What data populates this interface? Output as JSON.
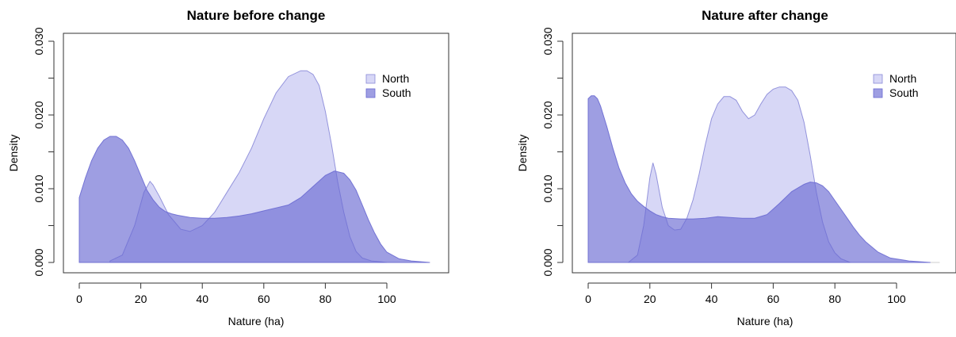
{
  "chart_data": [
    {
      "type": "area",
      "title": "Nature before change",
      "xlabel": "Nature (ha)",
      "ylabel": "Density",
      "xlim": [
        0,
        120
      ],
      "ylim": [
        0,
        0.03
      ],
      "x_ticks": [
        0,
        20,
        40,
        60,
        80,
        100
      ],
      "y_ticks": [
        "0.000",
        "0.010",
        "0.020",
        "0.030"
      ],
      "legend_position": "top-right",
      "series": [
        {
          "name": "North",
          "color": "#d0d0f4",
          "stroke": "#8a8ad8",
          "x": [
            10,
            14,
            18,
            21,
            23,
            24,
            26,
            29,
            33,
            36,
            40,
            44,
            48,
            52,
            56,
            60,
            64,
            68,
            72,
            74,
            76,
            78,
            80,
            82,
            84,
            86,
            88,
            90,
            92,
            95,
            98,
            100
          ],
          "y": [
            0.0002,
            0.001,
            0.005,
            0.0095,
            0.011,
            0.0105,
            0.009,
            0.0065,
            0.0045,
            0.0042,
            0.005,
            0.0068,
            0.0095,
            0.0122,
            0.0155,
            0.0195,
            0.023,
            0.0252,
            0.026,
            0.026,
            0.0255,
            0.024,
            0.0205,
            0.016,
            0.011,
            0.0068,
            0.0035,
            0.0015,
            0.0006,
            0.0002,
            0.0001,
            0.0
          ]
        },
        {
          "name": "South",
          "color": "#6a6ad2",
          "stroke": "#6a6ad2",
          "x": [
            0,
            2,
            4,
            6,
            8,
            10,
            12,
            14,
            16,
            18,
            20,
            22,
            24,
            26,
            28,
            30,
            32,
            36,
            40,
            44,
            48,
            52,
            56,
            60,
            64,
            68,
            72,
            76,
            80,
            83,
            86,
            88,
            90,
            92,
            94,
            96,
            98,
            100,
            104,
            108,
            114
          ],
          "y": [
            0.0088,
            0.0115,
            0.0138,
            0.0155,
            0.0166,
            0.0171,
            0.0171,
            0.0166,
            0.0155,
            0.0138,
            0.0118,
            0.0098,
            0.0085,
            0.0075,
            0.0069,
            0.0066,
            0.0064,
            0.0061,
            0.006,
            0.006,
            0.0061,
            0.0063,
            0.0066,
            0.007,
            0.0074,
            0.0078,
            0.0088,
            0.0103,
            0.0118,
            0.0124,
            0.0121,
            0.0112,
            0.0098,
            0.0078,
            0.0058,
            0.004,
            0.0025,
            0.0014,
            0.0005,
            0.0002,
            0.0
          ]
        }
      ]
    },
    {
      "type": "area",
      "title": "Nature after change",
      "xlabel": "Nature (ha)",
      "ylabel": "Density",
      "xlim": [
        0,
        120
      ],
      "ylim": [
        0,
        0.03
      ],
      "x_ticks": [
        0,
        20,
        40,
        60,
        80,
        100
      ],
      "y_ticks": [
        "0.000",
        "0.010",
        "0.020",
        "0.030"
      ],
      "legend_position": "top-right",
      "series": [
        {
          "name": "North",
          "color": "#d0d0f4",
          "stroke": "#8a8ad8",
          "x": [
            13,
            16,
            18,
            20,
            21,
            22,
            24,
            26,
            28,
            30,
            32,
            34,
            36,
            38,
            40,
            42,
            44,
            46,
            48,
            50,
            52,
            54,
            56,
            58,
            60,
            62,
            64,
            66,
            68,
            70,
            72,
            74,
            76,
            78,
            80,
            82,
            85
          ],
          "y": [
            0.0,
            0.001,
            0.005,
            0.0115,
            0.0135,
            0.012,
            0.0075,
            0.005,
            0.0044,
            0.0045,
            0.006,
            0.0085,
            0.012,
            0.016,
            0.0195,
            0.0215,
            0.0225,
            0.0225,
            0.022,
            0.0205,
            0.0195,
            0.02,
            0.0215,
            0.0228,
            0.0235,
            0.0238,
            0.0238,
            0.0233,
            0.022,
            0.019,
            0.0145,
            0.0095,
            0.0055,
            0.0028,
            0.0013,
            0.0005,
            0.0
          ]
        },
        {
          "name": "South",
          "color": "#6a6ad2",
          "stroke": "#6a6ad2",
          "x": [
            0,
            1,
            2,
            3,
            4,
            6,
            8,
            10,
            12,
            14,
            16,
            18,
            20,
            22,
            24,
            26,
            30,
            34,
            38,
            42,
            46,
            50,
            54,
            58,
            62,
            66,
            70,
            72,
            74,
            76,
            78,
            80,
            82,
            84,
            86,
            88,
            90,
            94,
            98,
            104,
            111
          ],
          "y": [
            0.0222,
            0.0226,
            0.0226,
            0.0222,
            0.0212,
            0.0185,
            0.0155,
            0.0128,
            0.0108,
            0.0093,
            0.0083,
            0.0076,
            0.007,
            0.0065,
            0.0062,
            0.006,
            0.0059,
            0.0059,
            0.006,
            0.0062,
            0.0061,
            0.006,
            0.006,
            0.0065,
            0.008,
            0.0096,
            0.0106,
            0.0109,
            0.0108,
            0.0104,
            0.0096,
            0.0084,
            0.0072,
            0.006,
            0.0048,
            0.0037,
            0.0028,
            0.0014,
            0.0006,
            0.0002,
            0.0
          ]
        }
      ]
    }
  ]
}
